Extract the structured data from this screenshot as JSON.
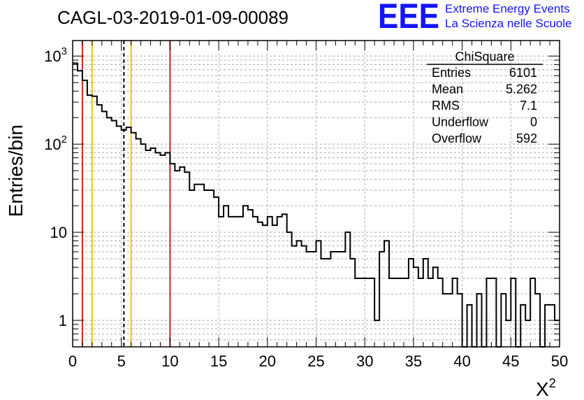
{
  "chart_data": {
    "type": "histogram",
    "title": "CAGL-03-2019-01-09-00089",
    "xlabel": "X",
    "xlabel_superscript": "2",
    "ylabel": "Entries/bin",
    "xlim": [
      0,
      50
    ],
    "ylim": [
      0.5,
      1500
    ],
    "yscale": "log",
    "grid": true,
    "bin_width": 0.5,
    "x_ticks": [
      "0",
      "5",
      "10",
      "15",
      "20",
      "25",
      "30",
      "35",
      "40",
      "45",
      "50"
    ],
    "y_ticks": [
      {
        "value": 1,
        "label": "1"
      },
      {
        "value": 10,
        "label": "10"
      },
      {
        "value": 100,
        "label": "10",
        "sup": "2"
      },
      {
        "value": 1000,
        "label": "10",
        "sup": "3"
      }
    ],
    "counts": [
      830,
      680,
      530,
      360,
      350,
      280,
      235,
      200,
      185,
      160,
      145,
      155,
      135,
      115,
      100,
      85,
      90,
      80,
      75,
      80,
      60,
      50,
      55,
      48,
      30,
      35,
      35,
      30,
      30,
      25,
      15,
      20,
      15,
      15,
      15,
      20,
      18,
      15,
      13,
      12,
      15,
      12,
      15,
      16,
      10,
      7,
      8,
      7,
      6,
      6,
      8,
      5,
      5,
      6,
      6,
      6,
      10,
      5,
      3,
      3,
      3,
      3,
      1,
      6,
      8,
      3,
      3,
      3,
      3,
      5,
      4,
      3,
      5,
      3,
      4,
      3,
      2,
      2,
      3,
      2,
      0,
      1.5,
      0,
      2,
      0,
      3,
      3,
      0,
      2,
      1,
      3,
      0,
      1.5,
      1,
      3,
      2,
      0,
      1.5,
      1.5,
      1
    ],
    "vertical_lines": [
      {
        "x": 1,
        "color": "#e02020",
        "style": "solid"
      },
      {
        "x": 2,
        "color": "#f5c010",
        "style": "solid"
      },
      {
        "x": 5.262,
        "color": "#000000",
        "style": "dashed"
      },
      {
        "x": 6,
        "color": "#f5c010",
        "style": "solid"
      },
      {
        "x": 10,
        "color": "#e02020",
        "style": "solid"
      }
    ],
    "line_color": "#000000"
  },
  "stats": {
    "title": "ChiSquare",
    "rows": [
      {
        "label": "Entries",
        "value": "6101"
      },
      {
        "label": "Mean",
        "value": "5.262"
      },
      {
        "label": "RMS",
        "value": "7.1"
      },
      {
        "label": "Underflow",
        "value": "0"
      },
      {
        "label": "Overflow",
        "value": "592"
      }
    ]
  },
  "logo": {
    "mark": "EEE",
    "line1": "Extreme Energy Events",
    "line2": "La Scienza nelle Scuole",
    "color": "#1414ff"
  }
}
